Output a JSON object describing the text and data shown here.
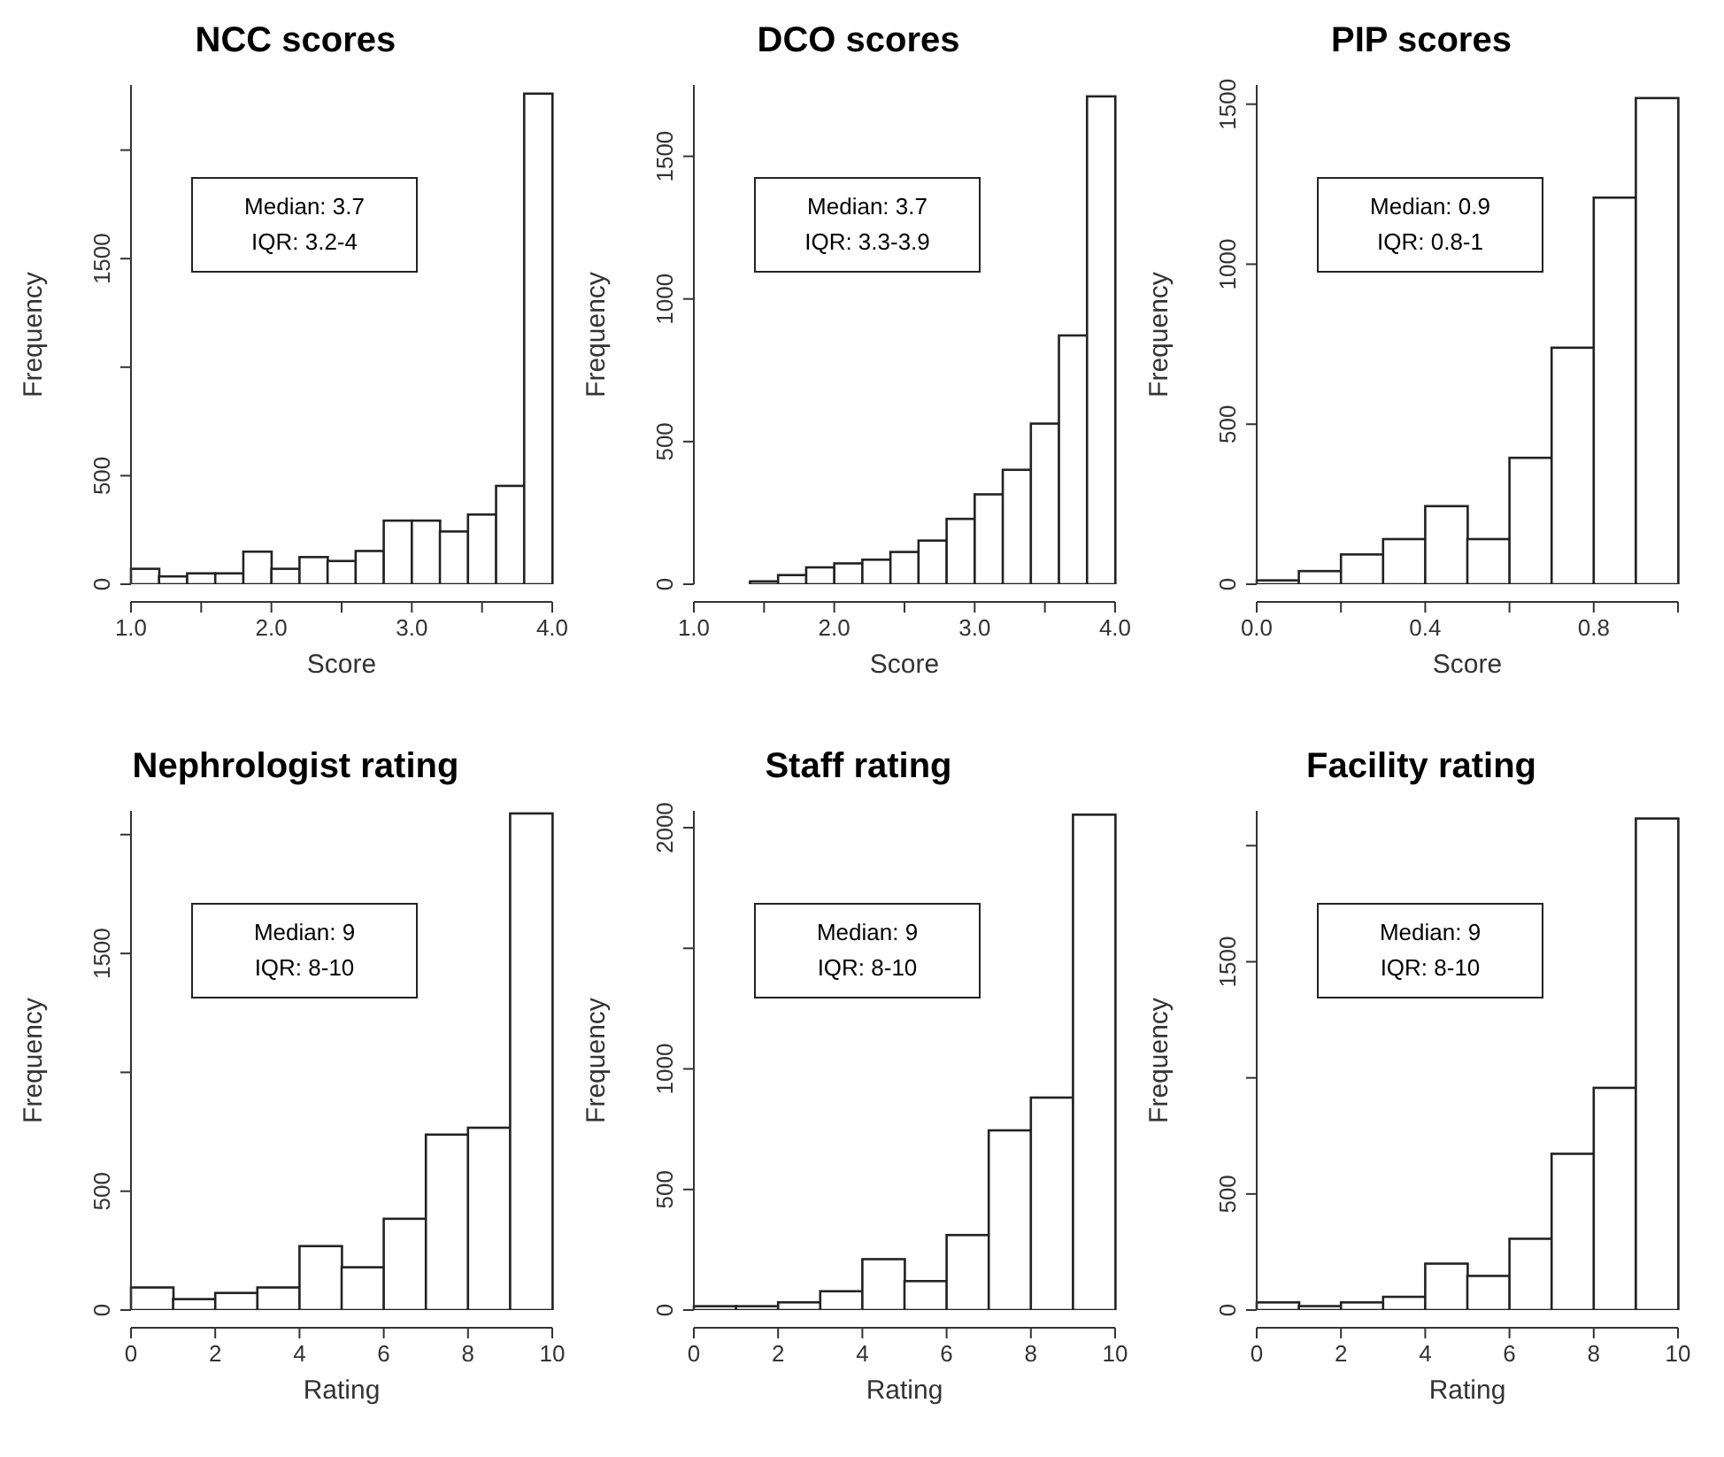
{
  "chart_data": [
    {
      "type": "histogram",
      "title": "NCC scores",
      "xlabel": "Score",
      "ylabel": "Frequency",
      "color": "#ffffff",
      "bins": [
        1.0,
        1.2,
        1.4,
        1.6,
        1.8,
        2.0,
        2.2,
        2.4,
        2.6,
        2.8,
        3.0,
        3.2,
        3.4,
        3.6,
        3.8,
        4.0
      ],
      "values": [
        71,
        36,
        50,
        50,
        150,
        71,
        125,
        107,
        153,
        293,
        293,
        243,
        321,
        453,
        2260
      ],
      "xlim": [
        1,
        4
      ],
      "xticks": [
        {
          "value": 1,
          "label": "1.0"
        },
        {
          "value": 1.5,
          "label": null
        },
        {
          "value": 2,
          "label": "2.0"
        },
        {
          "value": 2.5,
          "label": null
        },
        {
          "value": 3,
          "label": "3.0"
        },
        {
          "value": 3.5,
          "label": null
        },
        {
          "value": 4,
          "label": "4.0"
        }
      ],
      "ylim": [
        0,
        2300
      ],
      "yticks": [
        0,
        500,
        {
          "value": 1000,
          "label": null
        },
        1500,
        {
          "value": 2000,
          "label": null
        }
      ],
      "annotations": [
        "Median: 3.7",
        "IQR: 3.2-4"
      ],
      "grid": false,
      "legend": false
    },
    {
      "type": "histogram",
      "title": "DCO scores",
      "xlabel": "Score",
      "ylabel": "Frequency",
      "color": "#ffffff",
      "bins": [
        1.0,
        1.2,
        1.4,
        1.6,
        1.8,
        2.0,
        2.2,
        2.4,
        2.6,
        2.8,
        3.0,
        3.2,
        3.4,
        3.6,
        3.8,
        4.0
      ],
      "values": [
        0,
        0,
        10,
        32,
        59,
        73,
        86,
        113,
        153,
        229,
        315,
        401,
        563,
        872,
        1710
      ],
      "xlim": [
        1,
        4
      ],
      "xticks": [
        {
          "value": 1,
          "label": "1.0"
        },
        {
          "value": 1.5,
          "label": null
        },
        {
          "value": 2,
          "label": "2.0"
        },
        {
          "value": 2.5,
          "label": null
        },
        {
          "value": 3,
          "label": "3.0"
        },
        {
          "value": 3.5,
          "label": null
        },
        {
          "value": 4,
          "label": "4.0"
        }
      ],
      "ylim": [
        0,
        1750
      ],
      "yticks": [
        0,
        500,
        1000,
        1500
      ],
      "annotations": [
        "Median: 3.7",
        "IQR: 3.3-3.9"
      ],
      "grid": false,
      "legend": false
    },
    {
      "type": "histogram",
      "title": "PIP scores",
      "xlabel": "Score",
      "ylabel": "Frequency",
      "color": "#ffffff",
      "bins": [
        0,
        0.1,
        0.2,
        0.3,
        0.4,
        0.5,
        0.6,
        0.7,
        0.8,
        0.9,
        1.0
      ],
      "values": [
        12,
        41,
        93,
        141,
        244,
        141,
        395,
        739,
        1208,
        1519
      ],
      "xlim": [
        0,
        1
      ],
      "xticks": [
        {
          "value": 0,
          "label": "0.0"
        },
        {
          "value": 0.2,
          "label": null
        },
        0.4,
        {
          "value": 0.6,
          "label": null
        },
        0.8,
        {
          "value": 1,
          "label": null
        }
      ],
      "ylim": [
        0,
        1560
      ],
      "yticks": [
        0,
        500,
        1000,
        1500
      ],
      "annotations": [
        "Median: 0.9",
        "IQR: 0.8-1"
      ],
      "grid": false,
      "legend": false
    },
    {
      "type": "histogram",
      "title": "Nephrologist rating",
      "xlabel": "Rating",
      "ylabel": "Frequency",
      "color": "#ffffff",
      "bins": [
        0,
        1,
        2,
        3,
        4,
        5,
        6,
        7,
        8,
        9,
        10
      ],
      "values": [
        95,
        46,
        72,
        95,
        269,
        180,
        384,
        738,
        767,
        2089
      ],
      "xlim": [
        0,
        10
      ],
      "xticks": [
        0,
        2,
        4,
        6,
        8,
        10
      ],
      "ylim": [
        0,
        2100
      ],
      "yticks": [
        0,
        500,
        {
          "value": 1000,
          "label": null
        },
        1500,
        {
          "value": 2000,
          "label": null
        }
      ],
      "annotations": [
        "Median: 9",
        "IQR: 8-10"
      ],
      "grid": false,
      "legend": false
    },
    {
      "type": "histogram",
      "title": "Staff rating",
      "xlabel": "Rating",
      "ylabel": "Frequency",
      "color": "#ffffff",
      "bins": [
        0,
        1,
        2,
        3,
        4,
        5,
        6,
        7,
        8,
        9,
        10
      ],
      "values": [
        16,
        16,
        32,
        78,
        211,
        120,
        311,
        745,
        881,
        2054
      ],
      "xlim": [
        0,
        10
      ],
      "xticks": [
        0,
        2,
        4,
        6,
        8,
        10
      ],
      "ylim": [
        0,
        2070
      ],
      "yticks": [
        0,
        500,
        1000,
        {
          "value": 1500,
          "label": null
        },
        2000
      ],
      "annotations": [
        "Median: 9",
        "IQR: 8-10"
      ],
      "grid": false,
      "legend": false
    },
    {
      "type": "histogram",
      "title": "Facility rating",
      "xlabel": "Rating",
      "ylabel": "Frequency",
      "color": "#ffffff",
      "bins": [
        0,
        1,
        2,
        3,
        4,
        5,
        6,
        7,
        8,
        9,
        10
      ],
      "values": [
        33,
        17,
        33,
        57,
        200,
        147,
        307,
        673,
        957,
        2117
      ],
      "xlim": [
        0,
        10
      ],
      "xticks": [
        0,
        2,
        4,
        6,
        8,
        10
      ],
      "ylim": [
        0,
        2150
      ],
      "yticks": [
        0,
        500,
        {
          "value": 1000,
          "label": null
        },
        1500,
        {
          "value": 2000,
          "label": null
        }
      ],
      "annotations": [
        "Median: 9",
        "IQR: 8-10"
      ],
      "grid": false,
      "legend": false
    }
  ]
}
